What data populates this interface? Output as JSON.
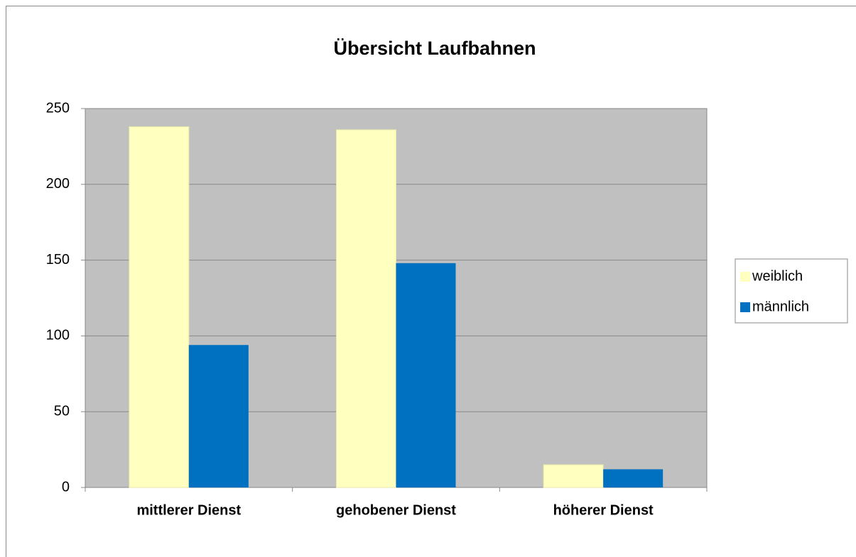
{
  "chart_data": {
    "type": "bar",
    "title": "Übersicht Laufbahnen",
    "categories": [
      "mittlerer Dienst",
      "gehobener Dienst",
      "höherer Dienst"
    ],
    "series": [
      {
        "name": "weiblich",
        "color": "#ffffc0",
        "values": [
          238,
          236,
          15
        ]
      },
      {
        "name": "männlich",
        "color": "#0070c0",
        "values": [
          94,
          148,
          12
        ]
      }
    ],
    "ylim": [
      0,
      250
    ],
    "yticks": [
      0,
      50,
      100,
      150,
      200,
      250
    ],
    "grid": true,
    "legend": "right"
  }
}
